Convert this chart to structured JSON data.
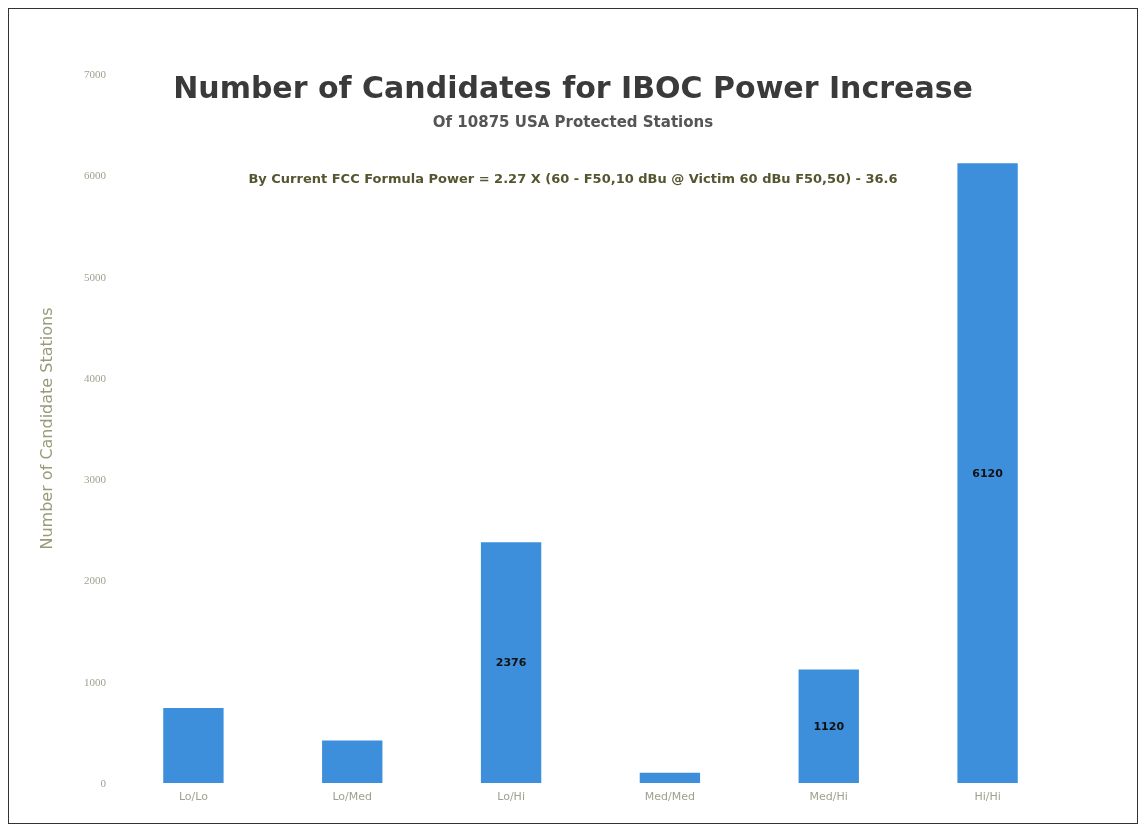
{
  "chart_data": {
    "type": "bar",
    "title": "Number of Candidates for IBOC Power Increase",
    "subtitle": "Of 10875 USA Protected Stations",
    "annotations": [
      "By Current FCC Formula Power = 2.27 X (60 - F50,10 dBu @ Victim 60 dBu F50,50) - 36.6"
    ],
    "ylabel": "Number of Candidate Stations",
    "categories": [
      "Lo/Lo",
      "Lo/Med",
      "Lo/Hi",
      "Med/Med",
      "Med/Hi",
      "Hi/Hi"
    ],
    "values": [
      740,
      420,
      2376,
      100,
      1120,
      6120
    ],
    "value_labels": [
      null,
      null,
      "2376",
      null,
      "1120",
      "6120"
    ],
    "color": "#3d8fdc",
    "ylim": [
      0,
      7000
    ],
    "yticks": [
      0,
      1000,
      2000,
      3000,
      4000,
      5000,
      6000,
      7000
    ],
    "grid": false
  }
}
